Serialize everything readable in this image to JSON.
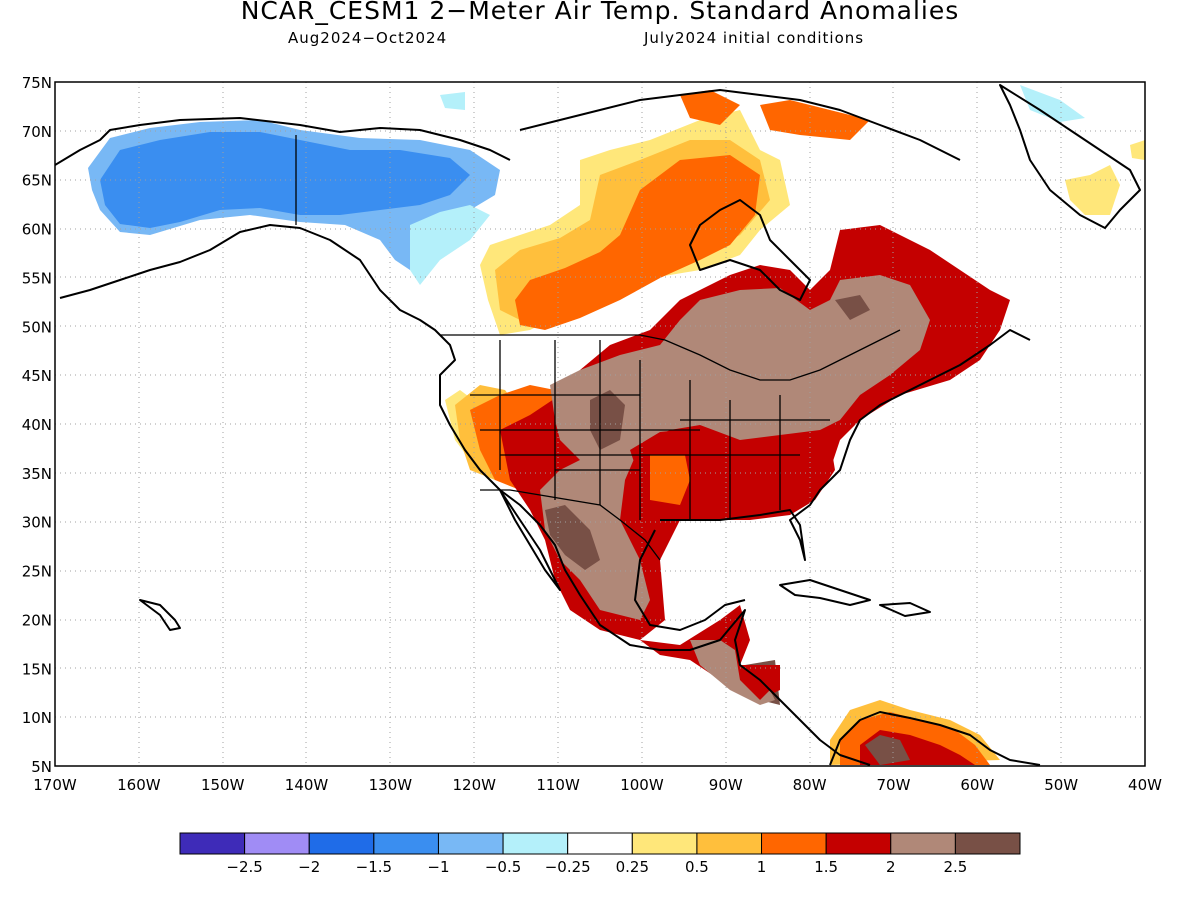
{
  "title": "NCAR_CESM1 2−Meter Air Temp. Standard Anomalies",
  "subtitle_left": "Aug2024−Oct2024",
  "subtitle_right": "July2024 initial conditions",
  "map": {
    "projection": "cylindrical equidistant",
    "lon_range": [
      -170,
      -40
    ],
    "lat_range": [
      5,
      75
    ],
    "grid": true,
    "lat_ticks": [
      "75N",
      "70N",
      "65N",
      "60N",
      "55N",
      "50N",
      "45N",
      "40N",
      "35N",
      "30N",
      "25N",
      "20N",
      "15N",
      "10N",
      "5N"
    ],
    "lon_ticks": [
      "170W",
      "160W",
      "150W",
      "140W",
      "130W",
      "120W",
      "110W",
      "100W",
      "90W",
      "80W",
      "70W",
      "60W",
      "50W",
      "40W"
    ]
  },
  "colorbar": {
    "colors": [
      "#3e2bb8",
      "#a08cf5",
      "#1f6ce8",
      "#3a8ef0",
      "#78b8f5",
      "#b4f0fa",
      "#ffffff",
      "#ffe77a",
      "#ffbf3c",
      "#ff6600",
      "#c40000",
      "#b08878",
      "#785046"
    ],
    "labels": [
      "−2.5",
      "−2",
      "−1.5",
      "−1",
      "−0.5",
      "−0.25",
      "0.25",
      "0.5",
      "1",
      "1.5",
      "2",
      "2.5"
    ]
  }
}
